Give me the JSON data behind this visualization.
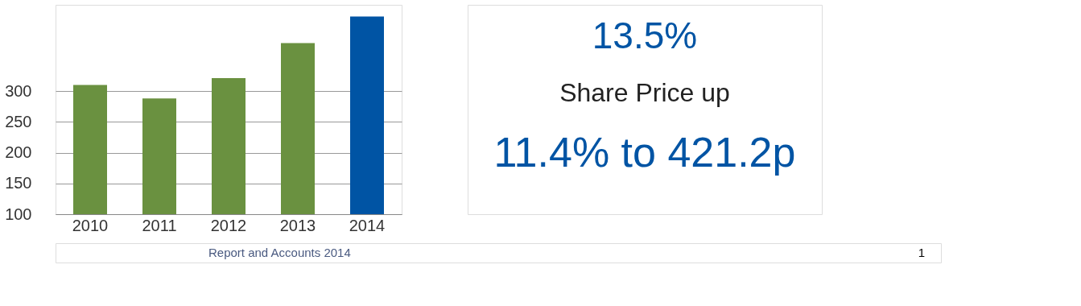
{
  "chart_data": {
    "type": "bar",
    "categories": [
      "2010",
      "2011",
      "2012",
      "2013",
      "2014"
    ],
    "values": [
      310,
      288,
      321,
      378,
      421
    ],
    "colors": [
      "#6a9140",
      "#6a9140",
      "#6a9140",
      "#6a9140",
      "#0054a4"
    ],
    "ylim": [
      100,
      440
    ],
    "yticks": [
      100,
      150,
      200,
      250,
      300
    ],
    "grid": "y",
    "annotations": [
      "13.5%",
      "Share Price up",
      "11.4% to 421.2p",
      "Report and Accounts 2014",
      "1"
    ]
  }
}
